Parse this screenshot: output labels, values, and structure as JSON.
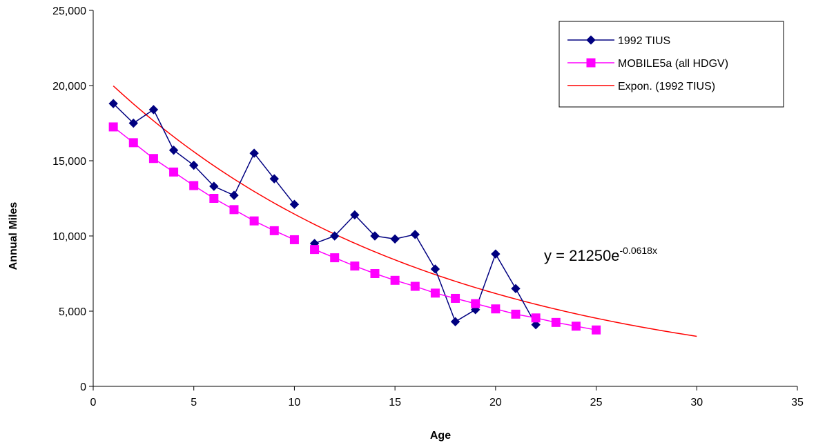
{
  "chart_data": {
    "type": "line",
    "title": "",
    "xlabel": "Age",
    "ylabel": "Annual Miles",
    "xlim": [
      0,
      35
    ],
    "ylim": [
      0,
      25000
    ],
    "x_ticks": [
      0,
      5,
      10,
      15,
      20,
      25,
      30,
      35
    ],
    "x_tick_labels": [
      "0",
      "5",
      "10",
      "15",
      "20",
      "25",
      "30",
      "35"
    ],
    "y_ticks": [
      0,
      5000,
      10000,
      15000,
      20000,
      25000
    ],
    "y_tick_labels": [
      "0",
      "5,000",
      "10,000",
      "15,000",
      "20,000",
      "25,000"
    ],
    "grid": false,
    "legend_position": "top-right",
    "series": [
      {
        "name": "1992 TIUS",
        "color": "#000080",
        "marker": "diamond",
        "segments": [
          [
            [
              1,
              18800
            ],
            [
              2,
              17500
            ],
            [
              3,
              18400
            ],
            [
              4,
              15700
            ],
            [
              5,
              14700
            ],
            [
              6,
              13300
            ],
            [
              7,
              12700
            ],
            [
              8,
              15500
            ],
            [
              9,
              13800
            ],
            [
              10,
              12100
            ]
          ],
          [
            [
              11,
              9500
            ],
            [
              12,
              10000
            ],
            [
              13,
              11400
            ],
            [
              14,
              10000
            ],
            [
              15,
              9800
            ],
            [
              16,
              10100
            ],
            [
              17,
              7800
            ],
            [
              18,
              4300
            ],
            [
              19,
              5100
            ],
            [
              20,
              8800
            ],
            [
              21,
              6500
            ],
            [
              22,
              4100
            ]
          ]
        ]
      },
      {
        "name": "MOBILE5a (all HDGV)",
        "color": "#FF00FF",
        "marker": "square",
        "segments": [
          [
            [
              1,
              17250
            ],
            [
              2,
              16200
            ],
            [
              3,
              15150
            ],
            [
              4,
              14250
            ],
            [
              5,
              13350
            ],
            [
              6,
              12500
            ],
            [
              7,
              11750
            ],
            [
              8,
              11000
            ],
            [
              9,
              10350
            ],
            [
              10,
              9750
            ]
          ],
          [
            [
              11,
              9100
            ],
            [
              12,
              8550
            ],
            [
              13,
              8000
            ],
            [
              14,
              7500
            ],
            [
              15,
              7050
            ],
            [
              16,
              6650
            ],
            [
              17,
              6200
            ],
            [
              18,
              5850
            ],
            [
              19,
              5500
            ],
            [
              20,
              5150
            ],
            [
              21,
              4800
            ],
            [
              22,
              4550
            ],
            [
              23,
              4250
            ],
            [
              24,
              4000
            ],
            [
              25,
              3750
            ]
          ]
        ]
      },
      {
        "name": "Expon. (1992 TIUS)",
        "color": "#FF0000",
        "marker": "none",
        "trendline": {
          "a": 21250,
          "b": -0.0618,
          "x_range": [
            1,
            30
          ]
        }
      }
    ],
    "annotation": {
      "equation_base": "y = 21250e",
      "equation_exponent": "-0.0618x"
    }
  }
}
